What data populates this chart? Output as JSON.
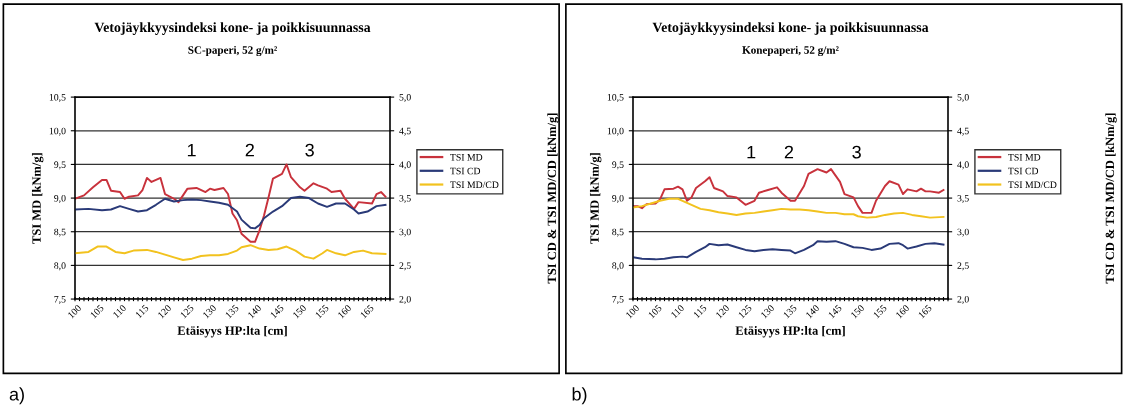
{
  "chart_data": [
    {
      "type": "line",
      "title": "Vetojäykkyysindeksi kone- ja poikkisuunnassa",
      "subtitle": "SC-paperi, 52 g/m²",
      "xlabel": "Etäisyys HP:lta [cm]",
      "ylabel": "TSI MD [kNm/g]",
      "y2label": "TSI CD & TSI MD/CD [kNm/g]",
      "series": [
        {
          "name": "TSI MD",
          "color": "#c8323c",
          "x": [
            100,
            102,
            104,
            106,
            107,
            108,
            110,
            111,
            112,
            114,
            115,
            116,
            117,
            119,
            120,
            122,
            123,
            125,
            127,
            129,
            130,
            131,
            133,
            134,
            135,
            136,
            137,
            139,
            140,
            141,
            142,
            143,
            144,
            146,
            147,
            148,
            150,
            151,
            153,
            154,
            156,
            157,
            159,
            160,
            162,
            163,
            166,
            167,
            168,
            169
          ],
          "values": [
            8.99,
            9.04,
            9.16,
            9.27,
            9.27,
            9.11,
            9.09,
            8.99,
            9.02,
            9.04,
            9.12,
            9.3,
            9.24,
            9.3,
            9.06,
            8.99,
            8.94,
            9.14,
            9.15,
            9.09,
            9.14,
            9.12,
            9.15,
            9.06,
            8.77,
            8.67,
            8.47,
            8.35,
            8.35,
            8.52,
            8.74,
            9.01,
            9.29,
            9.36,
            9.5,
            9.31,
            9.16,
            9.11,
            9.22,
            9.19,
            9.14,
            9.09,
            9.11,
            8.99,
            8.84,
            8.94,
            8.92,
            9.06,
            9.09,
            9.02
          ]
        },
        {
          "name": "TSI CD",
          "color": "#2a3a78",
          "axis": "y2",
          "x": [
            100,
            103,
            106,
            108,
            110,
            112,
            114,
            116,
            118,
            120,
            122,
            124,
            126,
            128,
            130,
            132,
            134,
            136,
            137,
            138,
            139,
            140,
            141,
            142,
            144,
            146,
            148,
            150,
            152,
            154,
            156,
            158,
            160,
            162,
            163,
            165,
            167,
            169
          ],
          "values": [
            3.33,
            3.34,
            3.32,
            3.33,
            3.38,
            3.34,
            3.3,
            3.32,
            3.4,
            3.49,
            3.45,
            3.47,
            3.48,
            3.47,
            3.45,
            3.43,
            3.4,
            3.3,
            3.18,
            3.12,
            3.06,
            3.05,
            3.1,
            3.2,
            3.3,
            3.38,
            3.5,
            3.52,
            3.5,
            3.42,
            3.37,
            3.42,
            3.42,
            3.33,
            3.27,
            3.3,
            3.38,
            3.4
          ]
        },
        {
          "name": "TSI MD/CD",
          "color": "#f2c21e",
          "axis": "y2",
          "x": [
            100,
            103,
            105,
            107,
            109,
            111,
            113,
            116,
            118,
            120,
            122,
            124,
            126,
            128,
            130,
            132,
            134,
            136,
            137,
            139,
            141,
            143,
            145,
            147,
            149,
            151,
            153,
            155,
            156,
            158,
            160,
            162,
            164,
            166,
            169
          ],
          "values": [
            2.68,
            2.7,
            2.78,
            2.78,
            2.7,
            2.68,
            2.72,
            2.73,
            2.7,
            2.66,
            2.62,
            2.58,
            2.6,
            2.64,
            2.65,
            2.65,
            2.67,
            2.72,
            2.77,
            2.8,
            2.75,
            2.73,
            2.74,
            2.78,
            2.72,
            2.63,
            2.6,
            2.68,
            2.73,
            2.68,
            2.65,
            2.7,
            2.72,
            2.68,
            2.67
          ]
        }
      ],
      "xlim": [
        100,
        170
      ],
      "xticks": [
        100,
        {
          "value": 101,
          "label": null
        },
        {
          "value": 102,
          "label": null
        },
        {
          "value": 103,
          "label": null
        },
        {
          "value": 104,
          "label": null
        },
        105,
        {
          "value": 106,
          "label": null
        },
        {
          "value": 107,
          "label": null
        },
        {
          "value": 108,
          "label": null
        },
        {
          "value": 109,
          "label": null
        },
        110,
        {
          "value": 111,
          "label": null
        },
        {
          "value": 112,
          "label": null
        },
        {
          "value": 113,
          "label": null
        },
        {
          "value": 114,
          "label": null
        },
        115,
        {
          "value": 116,
          "label": null
        },
        {
          "value": 117,
          "label": null
        },
        {
          "value": 118,
          "label": null
        },
        {
          "value": 119,
          "label": null
        },
        120,
        {
          "value": 121,
          "label": null
        },
        {
          "value": 122,
          "label": null
        },
        {
          "value": 123,
          "label": null
        },
        {
          "value": 124,
          "label": null
        },
        125,
        {
          "value": 126,
          "label": null
        },
        {
          "value": 127,
          "label": null
        },
        {
          "value": 128,
          "label": null
        },
        {
          "value": 129,
          "label": null
        },
        130,
        {
          "value": 131,
          "label": null
        },
        {
          "value": 132,
          "label": null
        },
        {
          "value": 133,
          "label": null
        },
        {
          "value": 134,
          "label": null
        },
        135,
        {
          "value": 136,
          "label": null
        },
        {
          "value": 137,
          "label": null
        },
        {
          "value": 138,
          "label": null
        },
        {
          "value": 139,
          "label": null
        },
        140,
        {
          "value": 141,
          "label": null
        },
        {
          "value": 142,
          "label": null
        },
        {
          "value": 143,
          "label": null
        },
        {
          "value": 144,
          "label": null
        },
        145,
        {
          "value": 146,
          "label": null
        },
        {
          "value": 147,
          "label": null
        },
        {
          "value": 148,
          "label": null
        },
        {
          "value": 149,
          "label": null
        },
        150,
        {
          "value": 151,
          "label": null
        },
        {
          "value": 152,
          "label": null
        },
        {
          "value": 153,
          "label": null
        },
        {
          "value": 154,
          "label": null
        },
        155,
        {
          "value": 156,
          "label": null
        },
        {
          "value": 157,
          "label": null
        },
        {
          "value": 158,
          "label": null
        },
        {
          "value": 159,
          "label": null
        },
        160,
        {
          "value": 161,
          "label": null
        },
        {
          "value": 162,
          "label": null
        },
        {
          "value": 163,
          "label": null
        },
        {
          "value": 164,
          "label": null
        },
        165,
        {
          "value": 166,
          "label": null
        },
        {
          "value": 167,
          "label": null
        },
        {
          "value": 168,
          "label": null
        },
        {
          "value": 169,
          "label": null
        },
        {
          "value": 170,
          "label": null
        }
      ],
      "ylim": [
        7.5,
        10.5
      ],
      "yticks": [
        {
          "value": 7.5,
          "label": "7,5"
        },
        {
          "value": 8.0,
          "label": "8,0"
        },
        {
          "value": 8.5,
          "label": "8,5"
        },
        {
          "value": 9.0,
          "label": "9,0"
        },
        {
          "value": 9.5,
          "label": "9,5"
        },
        {
          "value": 10.0,
          "label": "10,0"
        },
        {
          "value": 10.5,
          "label": "10,5"
        }
      ],
      "y2lim": [
        2.0,
        5.0
      ],
      "y2ticks": [
        {
          "value": 2.0,
          "label": "2,0"
        },
        {
          "value": 2.5,
          "label": "2,5"
        },
        {
          "value": 3.0,
          "label": "3,0"
        },
        {
          "value": 3.5,
          "label": "3,5"
        },
        {
          "value": 4.0,
          "label": "4,0"
        },
        {
          "value": 4.5,
          "label": "4,5"
        },
        {
          "value": 5.0,
          "label": "5,0"
        }
      ],
      "grid": "y",
      "legend": "right",
      "marker": "none",
      "line_style": "solid",
      "annotations": [
        "1",
        "2",
        "3",
        "a)"
      ]
    },
    {
      "type": "line",
      "title": "Vetojäykkyysindeksi kone- ja poikkisuunnassa",
      "subtitle": "Konepaperi, 52 g/m²",
      "xlabel": "Etäisyys HP:lta [cm]",
      "ylabel": "TSI MD [kNm/g]",
      "y2label": "TSI CD & TSI MD/CD [kNm/g]",
      "series": [
        {
          "name": "TSI MD",
          "color": "#c8323c",
          "x": [
            100,
            101,
            102,
            103,
            105,
            106,
            107,
            109,
            110,
            111,
            112,
            113,
            114,
            116,
            117,
            118,
            120,
            121,
            123,
            125,
            127,
            128,
            130,
            132,
            133,
            135,
            136,
            138,
            139,
            141,
            143,
            144,
            146,
            147,
            149,
            150,
            151,
            153,
            154,
            156,
            157,
            159,
            160,
            161,
            163,
            164,
            165,
            166,
            168,
            169
          ],
          "values": [
            8.88,
            8.88,
            8.85,
            8.91,
            8.92,
            8.98,
            9.13,
            9.14,
            9.17,
            9.13,
            8.96,
            9.01,
            9.15,
            9.25,
            9.31,
            9.15,
            9.1,
            9.03,
            9.01,
            8.9,
            8.96,
            9.08,
            9.12,
            9.16,
            9.08,
            8.96,
            8.96,
            9.18,
            9.36,
            9.43,
            9.38,
            9.43,
            9.24,
            9.06,
            9.01,
            8.88,
            8.78,
            8.78,
            8.96,
            9.18,
            9.25,
            9.2,
            9.06,
            9.13,
            9.1,
            9.14,
            9.1,
            9.1,
            9.08,
            9.12
          ]
        },
        {
          "name": "TSI CD",
          "color": "#2a3a78",
          "axis": "y2",
          "x": [
            100,
            102,
            105,
            107,
            109,
            111,
            112,
            114,
            116,
            117,
            119,
            121,
            123,
            125,
            127,
            129,
            131,
            133,
            135,
            136,
            138,
            140,
            141,
            143,
            145,
            147,
            149,
            151,
            153,
            155,
            157,
            159,
            160,
            161,
            163,
            165,
            167,
            169
          ],
          "values": [
            2.62,
            2.6,
            2.59,
            2.6,
            2.62,
            2.63,
            2.62,
            2.7,
            2.77,
            2.82,
            2.8,
            2.81,
            2.77,
            2.73,
            2.71,
            2.73,
            2.74,
            2.73,
            2.72,
            2.68,
            2.73,
            2.8,
            2.86,
            2.85,
            2.86,
            2.82,
            2.77,
            2.76,
            2.73,
            2.75,
            2.82,
            2.83,
            2.8,
            2.75,
            2.78,
            2.82,
            2.83,
            2.81
          ]
        },
        {
          "name": "TSI MD/CD",
          "color": "#f2c21e",
          "axis": "y2",
          "x": [
            100,
            102,
            104,
            106,
            108,
            110,
            111,
            113,
            115,
            117,
            119,
            121,
            123,
            125,
            127,
            129,
            131,
            133,
            135,
            137,
            139,
            141,
            143,
            145,
            147,
            149,
            150,
            152,
            154,
            156,
            158,
            160,
            162,
            164,
            166,
            169
          ],
          "values": [
            3.36,
            3.38,
            3.42,
            3.46,
            3.49,
            3.49,
            3.46,
            3.4,
            3.34,
            3.32,
            3.29,
            3.27,
            3.25,
            3.27,
            3.28,
            3.3,
            3.32,
            3.34,
            3.33,
            3.33,
            3.32,
            3.3,
            3.28,
            3.28,
            3.26,
            3.26,
            3.23,
            3.21,
            3.22,
            3.25,
            3.27,
            3.28,
            3.25,
            3.23,
            3.21,
            3.22
          ]
        }
      ],
      "xlim": [
        100,
        170
      ],
      "xticks": [
        100,
        {
          "value": 101,
          "label": null
        },
        {
          "value": 102,
          "label": null
        },
        {
          "value": 103,
          "label": null
        },
        {
          "value": 104,
          "label": null
        },
        105,
        {
          "value": 106,
          "label": null
        },
        {
          "value": 107,
          "label": null
        },
        {
          "value": 108,
          "label": null
        },
        {
          "value": 109,
          "label": null
        },
        110,
        {
          "value": 111,
          "label": null
        },
        {
          "value": 112,
          "label": null
        },
        {
          "value": 113,
          "label": null
        },
        {
          "value": 114,
          "label": null
        },
        115,
        {
          "value": 116,
          "label": null
        },
        {
          "value": 117,
          "label": null
        },
        {
          "value": 118,
          "label": null
        },
        {
          "value": 119,
          "label": null
        },
        120,
        {
          "value": 121,
          "label": null
        },
        {
          "value": 122,
          "label": null
        },
        {
          "value": 123,
          "label": null
        },
        {
          "value": 124,
          "label": null
        },
        125,
        {
          "value": 126,
          "label": null
        },
        {
          "value": 127,
          "label": null
        },
        {
          "value": 128,
          "label": null
        },
        {
          "value": 129,
          "label": null
        },
        130,
        {
          "value": 131,
          "label": null
        },
        {
          "value": 132,
          "label": null
        },
        {
          "value": 133,
          "label": null
        },
        {
          "value": 134,
          "label": null
        },
        135,
        {
          "value": 136,
          "label": null
        },
        {
          "value": 137,
          "label": null
        },
        {
          "value": 138,
          "label": null
        },
        {
          "value": 139,
          "label": null
        },
        140,
        {
          "value": 141,
          "label": null
        },
        {
          "value": 142,
          "label": null
        },
        {
          "value": 143,
          "label": null
        },
        {
          "value": 144,
          "label": null
        },
        145,
        {
          "value": 146,
          "label": null
        },
        {
          "value": 147,
          "label": null
        },
        {
          "value": 148,
          "label": null
        },
        {
          "value": 149,
          "label": null
        },
        150,
        {
          "value": 151,
          "label": null
        },
        {
          "value": 152,
          "label": null
        },
        {
          "value": 153,
          "label": null
        },
        {
          "value": 154,
          "label": null
        },
        155,
        {
          "value": 156,
          "label": null
        },
        {
          "value": 157,
          "label": null
        },
        {
          "value": 158,
          "label": null
        },
        {
          "value": 159,
          "label": null
        },
        160,
        {
          "value": 161,
          "label": null
        },
        {
          "value": 162,
          "label": null
        },
        {
          "value": 163,
          "label": null
        },
        {
          "value": 164,
          "label": null
        },
        165,
        {
          "value": 166,
          "label": null
        },
        {
          "value": 167,
          "label": null
        },
        {
          "value": 168,
          "label": null
        },
        {
          "value": 169,
          "label": null
        },
        {
          "value": 170,
          "label": null
        }
      ],
      "ylim": [
        7.5,
        10.5
      ],
      "yticks": [
        {
          "value": 7.5,
          "label": "7,5"
        },
        {
          "value": 8.0,
          "label": "8,0"
        },
        {
          "value": 8.5,
          "label": "8,5"
        },
        {
          "value": 9.0,
          "label": "9,0"
        },
        {
          "value": 9.5,
          "label": "9,5"
        },
        {
          "value": 10.0,
          "label": "10,0"
        },
        {
          "value": 10.5,
          "label": "10,5"
        }
      ],
      "y2lim": [
        2.0,
        5.0
      ],
      "y2ticks": [
        {
          "value": 2.0,
          "label": "2,0"
        },
        {
          "value": 2.5,
          "label": "2,5"
        },
        {
          "value": 3.0,
          "label": "3,0"
        },
        {
          "value": 3.5,
          "label": "3,5"
        },
        {
          "value": 4.0,
          "label": "4,0"
        },
        {
          "value": 4.5,
          "label": "4,5"
        },
        {
          "value": 5.0,
          "label": "5,0"
        }
      ],
      "grid": "y",
      "legend": "right",
      "marker": "none",
      "line_style": "solid",
      "annotations": [
        "1",
        "2",
        "3",
        "b)"
      ]
    }
  ]
}
